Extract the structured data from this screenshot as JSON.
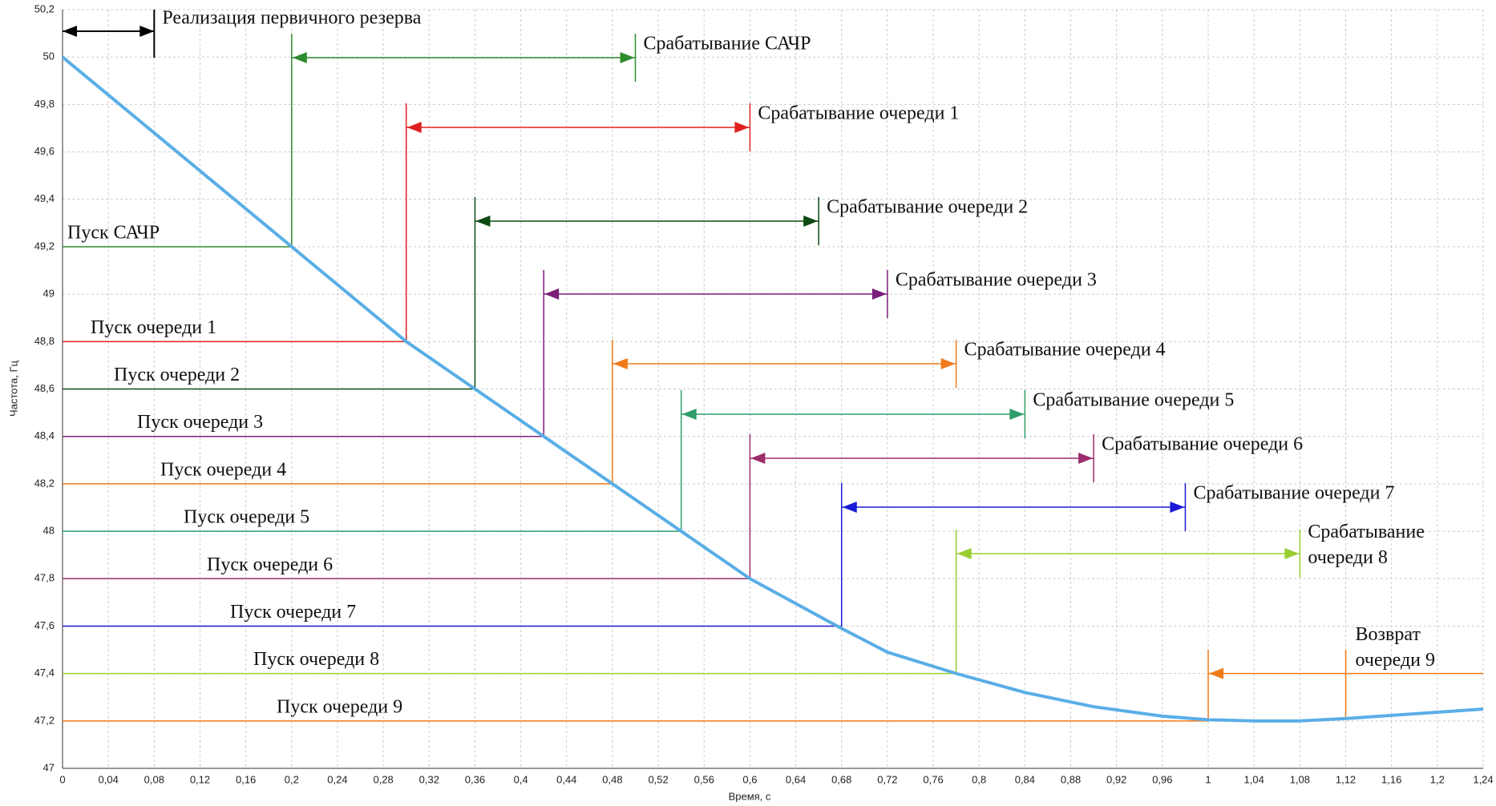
{
  "chart_data": {
    "type": "line",
    "xlabel": "Время, с",
    "ylabel": "Частота, Гц",
    "xlim": [
      0,
      1.24
    ],
    "ylim": [
      47,
      50.2
    ],
    "grid": true,
    "xticks": [
      0,
      {
        "value": 0.04,
        "label": "0,04"
      },
      {
        "value": 0.08,
        "label": "0,08"
      },
      {
        "value": 0.12,
        "label": "0,12"
      },
      {
        "value": 0.16,
        "label": "0,16"
      },
      {
        "value": 0.2,
        "label": "0,2"
      },
      {
        "value": 0.24,
        "label": "0,24"
      },
      {
        "value": 0.28,
        "label": "0,28"
      },
      {
        "value": 0.32,
        "label": "0,32"
      },
      {
        "value": 0.36,
        "label": "0,36"
      },
      {
        "value": 0.4,
        "label": "0,4"
      },
      {
        "value": 0.44,
        "label": "0,44"
      },
      {
        "value": 0.48,
        "label": "0,48"
      },
      {
        "value": 0.52,
        "label": "0,52"
      },
      {
        "value": 0.56,
        "label": "0,56"
      },
      {
        "value": 0.6,
        "label": "0,6"
      },
      {
        "value": 0.64,
        "label": "0,64"
      },
      {
        "value": 0.68,
        "label": "0,68"
      },
      {
        "value": 0.72,
        "label": "0,72"
      },
      {
        "value": 0.76,
        "label": "0,76"
      },
      {
        "value": 0.8,
        "label": "0,8"
      },
      {
        "value": 0.84,
        "label": "0,84"
      },
      {
        "value": 0.88,
        "label": "0,88"
      },
      {
        "value": 0.92,
        "label": "0,92"
      },
      {
        "value": 0.96,
        "label": "0,96"
      },
      1,
      {
        "value": 1.04,
        "label": "1,04"
      },
      {
        "value": 1.08,
        "label": "1,08"
      },
      {
        "value": 1.12,
        "label": "1,12"
      },
      {
        "value": 1.16,
        "label": "1,16"
      },
      {
        "value": 1.2,
        "label": "1,2"
      },
      {
        "value": 1.24,
        "label": "1,24"
      }
    ],
    "yticks": [
      47,
      {
        "value": 47.2,
        "label": "47,2"
      },
      {
        "value": 47.4,
        "label": "47,4"
      },
      {
        "value": 47.6,
        "label": "47,6"
      },
      {
        "value": 47.8,
        "label": "47,8"
      },
      48,
      {
        "value": 48.2,
        "label": "48,2"
      },
      {
        "value": 48.4,
        "label": "48,4"
      },
      {
        "value": 48.6,
        "label": "48,6"
      },
      {
        "value": 48.8,
        "label": "48,8"
      },
      49,
      {
        "value": 49.2,
        "label": "49,2"
      },
      {
        "value": 49.4,
        "label": "49,4"
      },
      {
        "value": 49.6,
        "label": "49,6"
      },
      {
        "value": 49.8,
        "label": "49,8"
      },
      50,
      {
        "value": 50.2,
        "label": "50,2"
      }
    ],
    "series": [
      {
        "color": "#5aaee6",
        "x": [
          0,
          0.05,
          0.1,
          0.15,
          0.2,
          0.3,
          0.36,
          0.42,
          0.48,
          0.54,
          0.6,
          0.68,
          0.72,
          0.78,
          0.84,
          0.9,
          0.96,
          1.0,
          1.04,
          1.08,
          1.12,
          1.18,
          1.24
        ],
        "values": [
          50,
          49.8,
          49.6,
          49.4,
          49.2,
          48.8,
          48.6,
          48.4,
          48.2,
          48.0,
          47.8,
          47.59,
          47.49,
          47.4,
          47.32,
          47.26,
          47.22,
          47.205,
          47.2,
          47.2,
          47.21,
          47.23,
          47.25
        ]
      }
    ],
    "reserve": {
      "label": "Реализация первичного резерва",
      "t_start": 0,
      "t_end": 0.08
    },
    "events": [
      {
        "start_label": "Пуск САЧР",
        "level": 49.2,
        "t_start": 0.2,
        "t_end": 0.5,
        "end_label": "Срабатывание САЧР",
        "color": "#2e8b2e"
      },
      {
        "start_label": "Пуск очереди 1",
        "level": 48.8,
        "t_start": 0.3,
        "t_end": 0.6,
        "end_label": "Срабатывание очереди 1",
        "color": "#e02020"
      },
      {
        "start_label": "Пуск очереди 2",
        "level": 48.6,
        "t_start": 0.36,
        "t_end": 0.66,
        "end_label": "Срабатывание очереди 2",
        "color": "#0d4a12"
      },
      {
        "start_label": "Пуск очереди 3",
        "level": 48.4,
        "t_start": 0.42,
        "t_end": 0.72,
        "end_label": "Срабатывание очереди 3",
        "color": "#7b1f7b"
      },
      {
        "start_label": "Пуск очереди 4",
        "level": 48.2,
        "t_start": 0.48,
        "t_end": 0.78,
        "end_label": "Срабатывание очереди 4",
        "color": "#f07a1a"
      },
      {
        "start_label": "Пуск очереди 5",
        "level": 48.0,
        "t_start": 0.54,
        "t_end": 0.84,
        "end_label": "Срабатывание очереди 5",
        "color": "#2e9e6a"
      },
      {
        "start_label": "Пуск очереди 6",
        "level": 47.8,
        "t_start": 0.6,
        "t_end": 0.9,
        "end_label": "Срабатывание очереди 6",
        "color": "#9b2d6a"
      },
      {
        "start_label": "Пуск очереди 7",
        "level": 47.6,
        "t_start": 0.68,
        "t_end": 0.98,
        "end_label": "Срабатывание очереди 7",
        "color": "#1a1ad6"
      },
      {
        "start_label": "Пуск очереди 8",
        "level": 47.4,
        "t_start": 0.78,
        "t_end": 1.08,
        "end_label": [
          "Срабатывание",
          "очереди 8"
        ],
        "color": "#9acd32"
      },
      {
        "start_label": "Пуск очереди 9",
        "level": 47.2,
        "t_start": 1.0,
        "color": "#f07a1a"
      }
    ],
    "return": {
      "label": [
        "Возврат",
        "очереди 9"
      ],
      "level": 47.4,
      "t_start": 1.12,
      "t_end": 1.0,
      "color": "#f07a1a"
    }
  }
}
